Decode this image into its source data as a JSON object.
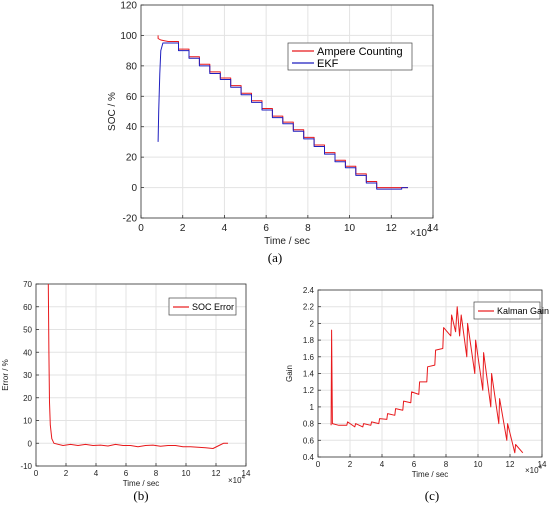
{
  "chart_data": [
    {
      "panel": "(a)",
      "type": "line",
      "xlabel": "Time / sec",
      "ylabel": "SOC / %",
      "x_multiplier_label": "×10",
      "x_multiplier_exp": "4",
      "xlim": [
        0,
        14
      ],
      "ylim": [
        -20,
        120
      ],
      "xticks": [
        0,
        2,
        4,
        6,
        8,
        10,
        12,
        14
      ],
      "yticks": [
        -20,
        0,
        20,
        40,
        60,
        80,
        100,
        120
      ],
      "grid": true,
      "legend_placement": "top-right",
      "series": [
        {
          "name": "Ampere Counting",
          "color": "#e8191c",
          "points": [
            [
              0.82,
              100
            ],
            [
              0.82,
              98
            ],
            [
              0.95,
              97
            ],
            [
              1.3,
              96
            ],
            [
              1.8,
              96
            ],
            [
              1.8,
              91
            ],
            [
              2.3,
              91
            ],
            [
              2.3,
              86
            ],
            [
              2.8,
              86
            ],
            [
              2.8,
              81
            ],
            [
              3.3,
              81
            ],
            [
              3.3,
              76
            ],
            [
              3.8,
              76
            ],
            [
              3.8,
              72
            ],
            [
              4.3,
              72
            ],
            [
              4.3,
              67
            ],
            [
              4.8,
              67
            ],
            [
              4.8,
              62
            ],
            [
              5.3,
              62
            ],
            [
              5.3,
              57
            ],
            [
              5.8,
              57
            ],
            [
              5.8,
              52
            ],
            [
              6.3,
              52
            ],
            [
              6.3,
              47
            ],
            [
              6.8,
              47
            ],
            [
              6.8,
              43
            ],
            [
              7.3,
              43
            ],
            [
              7.3,
              38
            ],
            [
              7.8,
              38
            ],
            [
              7.8,
              33
            ],
            [
              8.3,
              33
            ],
            [
              8.3,
              28
            ],
            [
              8.8,
              28
            ],
            [
              8.8,
              23
            ],
            [
              9.3,
              23
            ],
            [
              9.3,
              18
            ],
            [
              9.8,
              18
            ],
            [
              9.8,
              14
            ],
            [
              10.3,
              14
            ],
            [
              10.3,
              9
            ],
            [
              10.8,
              9
            ],
            [
              10.8,
              4
            ],
            [
              11.3,
              4
            ],
            [
              11.3,
              0
            ],
            [
              12.8,
              0
            ]
          ]
        },
        {
          "name": "EKF",
          "color": "#1f1fbf",
          "points": [
            [
              0.82,
              30
            ],
            [
              0.85,
              50
            ],
            [
              0.9,
              75
            ],
            [
              0.95,
              90
            ],
            [
              1.05,
              95
            ],
            [
              1.8,
              95
            ],
            [
              1.8,
              90
            ],
            [
              2.3,
              90
            ],
            [
              2.3,
              85
            ],
            [
              2.8,
              85
            ],
            [
              2.8,
              80
            ],
            [
              3.3,
              80
            ],
            [
              3.3,
              75
            ],
            [
              3.8,
              75
            ],
            [
              3.8,
              71
            ],
            [
              4.3,
              71
            ],
            [
              4.3,
              66
            ],
            [
              4.8,
              66
            ],
            [
              4.8,
              61
            ],
            [
              5.3,
              61
            ],
            [
              5.3,
              56
            ],
            [
              5.8,
              56
            ],
            [
              5.8,
              51
            ],
            [
              6.3,
              51
            ],
            [
              6.3,
              46
            ],
            [
              6.8,
              46
            ],
            [
              6.8,
              42
            ],
            [
              7.3,
              42
            ],
            [
              7.3,
              37
            ],
            [
              7.8,
              37
            ],
            [
              7.8,
              32
            ],
            [
              8.3,
              32
            ],
            [
              8.3,
              27
            ],
            [
              8.8,
              27
            ],
            [
              8.8,
              22
            ],
            [
              9.3,
              22
            ],
            [
              9.3,
              17
            ],
            [
              9.8,
              17
            ],
            [
              9.8,
              13
            ],
            [
              10.3,
              13
            ],
            [
              10.3,
              8
            ],
            [
              10.8,
              8
            ],
            [
              10.8,
              3
            ],
            [
              11.3,
              3
            ],
            [
              11.3,
              -1
            ],
            [
              12.5,
              -1
            ],
            [
              12.5,
              0
            ],
            [
              12.8,
              0
            ]
          ]
        }
      ]
    },
    {
      "panel": "(b)",
      "type": "line",
      "xlabel": "Time / sec",
      "ylabel": "Error / %",
      "x_multiplier_label": "×10",
      "x_multiplier_exp": "4",
      "xlim": [
        0,
        14
      ],
      "ylim": [
        -10,
        70
      ],
      "xticks": [
        0,
        2,
        4,
        6,
        8,
        10,
        12,
        14
      ],
      "yticks": [
        -10,
        0,
        10,
        20,
        30,
        40,
        50,
        60,
        70
      ],
      "grid": true,
      "legend_placement": "top-right",
      "series": [
        {
          "name": "SOC Error",
          "color": "#e8191c",
          "points": [
            [
              0.82,
              70
            ],
            [
              0.86,
              40
            ],
            [
              0.9,
              18
            ],
            [
              0.95,
              8
            ],
            [
              1.05,
              2
            ],
            [
              1.2,
              0
            ],
            [
              1.8,
              -1
            ],
            [
              2.3,
              -0.5
            ],
            [
              2.8,
              -1
            ],
            [
              3.3,
              -0.5
            ],
            [
              3.8,
              -1
            ],
            [
              4.3,
              -0.8
            ],
            [
              4.8,
              -1.2
            ],
            [
              5.3,
              -0.5
            ],
            [
              5.8,
              -1
            ],
            [
              6.3,
              -1
            ],
            [
              6.8,
              -1.5
            ],
            [
              7.3,
              -1
            ],
            [
              7.8,
              -0.8
            ],
            [
              8.3,
              -1.3
            ],
            [
              8.8,
              -1
            ],
            [
              9.3,
              -1
            ],
            [
              9.8,
              -1.5
            ],
            [
              10.3,
              -1.5
            ],
            [
              10.8,
              -1.8
            ],
            [
              11.3,
              -2
            ],
            [
              11.8,
              -2.3
            ],
            [
              12.2,
              -1
            ],
            [
              12.5,
              0
            ],
            [
              12.8,
              0
            ]
          ]
        }
      ]
    },
    {
      "panel": "(c)",
      "type": "line",
      "xlabel": "Time / sec",
      "ylabel": "Gain",
      "x_multiplier_label": "×10",
      "x_multiplier_exp": "4",
      "xlim": [
        0,
        14
      ],
      "ylim": [
        0.4,
        2.4
      ],
      "xticks": [
        0,
        2,
        4,
        6,
        8,
        10,
        12,
        14
      ],
      "yticks": [
        0.4,
        0.6,
        0.8,
        1.0,
        1.2,
        1.4,
        1.6,
        1.8,
        2.0,
        2.2,
        2.4
      ],
      "grid": true,
      "legend_placement": "top-right",
      "series": [
        {
          "name": "Kalman Gain",
          "color": "#e8191c",
          "points": [
            [
              0.82,
              0.78
            ],
            [
              0.85,
              1.92
            ],
            [
              0.9,
              0.8
            ],
            [
              1.3,
              0.78
            ],
            [
              1.8,
              0.78
            ],
            [
              1.85,
              0.82
            ],
            [
              2.3,
              0.76
            ],
            [
              2.35,
              0.8
            ],
            [
              2.8,
              0.76
            ],
            [
              2.85,
              0.8
            ],
            [
              3.3,
              0.78
            ],
            [
              3.35,
              0.82
            ],
            [
              3.8,
              0.8
            ],
            [
              3.85,
              0.86
            ],
            [
              4.3,
              0.85
            ],
            [
              4.35,
              0.92
            ],
            [
              4.8,
              0.9
            ],
            [
              4.85,
              0.98
            ],
            [
              5.3,
              0.96
            ],
            [
              5.35,
              1.07
            ],
            [
              5.8,
              1.05
            ],
            [
              5.85,
              1.18
            ],
            [
              6.3,
              1.15
            ],
            [
              6.35,
              1.3
            ],
            [
              6.8,
              1.3
            ],
            [
              6.85,
              1.48
            ],
            [
              7.3,
              1.5
            ],
            [
              7.35,
              1.68
            ],
            [
              7.8,
              1.7
            ],
            [
              7.85,
              1.95
            ],
            [
              8.3,
              1.85
            ],
            [
              8.35,
              2.1
            ],
            [
              8.6,
              1.9
            ],
            [
              8.7,
              2.2
            ],
            [
              8.85,
              1.85
            ],
            [
              8.95,
              2.1
            ],
            [
              9.3,
              1.6
            ],
            [
              9.35,
              2.0
            ],
            [
              9.8,
              1.4
            ],
            [
              9.85,
              1.8
            ],
            [
              10.3,
              1.2
            ],
            [
              10.35,
              1.65
            ],
            [
              10.8,
              1.0
            ],
            [
              10.85,
              1.4
            ],
            [
              11.3,
              0.8
            ],
            [
              11.35,
              1.1
            ],
            [
              11.8,
              0.6
            ],
            [
              11.85,
              0.8
            ],
            [
              12.3,
              0.45
            ],
            [
              12.35,
              0.55
            ],
            [
              12.8,
              0.45
            ]
          ]
        }
      ]
    }
  ]
}
